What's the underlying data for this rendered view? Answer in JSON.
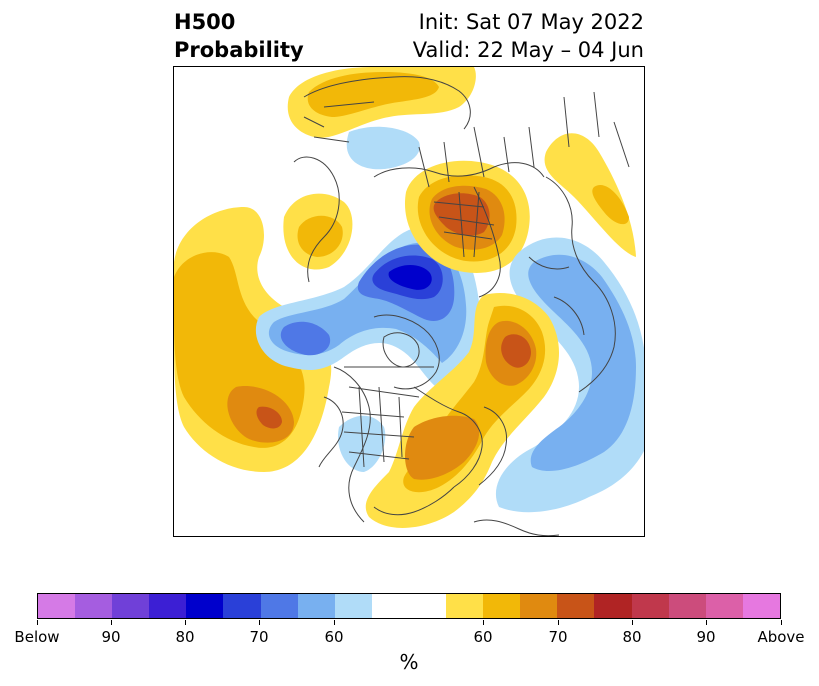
{
  "title": {
    "left_line1": "H500",
    "left_line2": "Probability",
    "right_line1": "Init: Sat 07 May 2022",
    "right_line2": "Valid: 22 May – 04 Jun"
  },
  "colorbar": {
    "units": "%",
    "colors": [
      "#d57ae6",
      "#a55de0",
      "#7040d8",
      "#3c1fd4",
      "#0000cc",
      "#2a40d8",
      "#4f78e6",
      "#78b0f0",
      "#b0dcf8",
      "#ffffff",
      "#ffffff",
      "#ffe048",
      "#f2b808",
      "#e08a10",
      "#c85418",
      "#b02424",
      "#c0384c",
      "#cc4c7c",
      "#dc60a8",
      "#e678e0"
    ],
    "tick_labels": [
      "Below",
      "90",
      "80",
      "70",
      "60",
      "60",
      "70",
      "80",
      "90",
      "Above"
    ]
  },
  "map": {
    "projection": "north-polar-stereographic",
    "field": "H500 probability anomaly",
    "features": [
      "above-normal-pacific-ridge",
      "below-normal-alaska-trough",
      "above-normal-eastern-us",
      "below-normal-north-atlantic",
      "above-normal-western-russia"
    ]
  }
}
